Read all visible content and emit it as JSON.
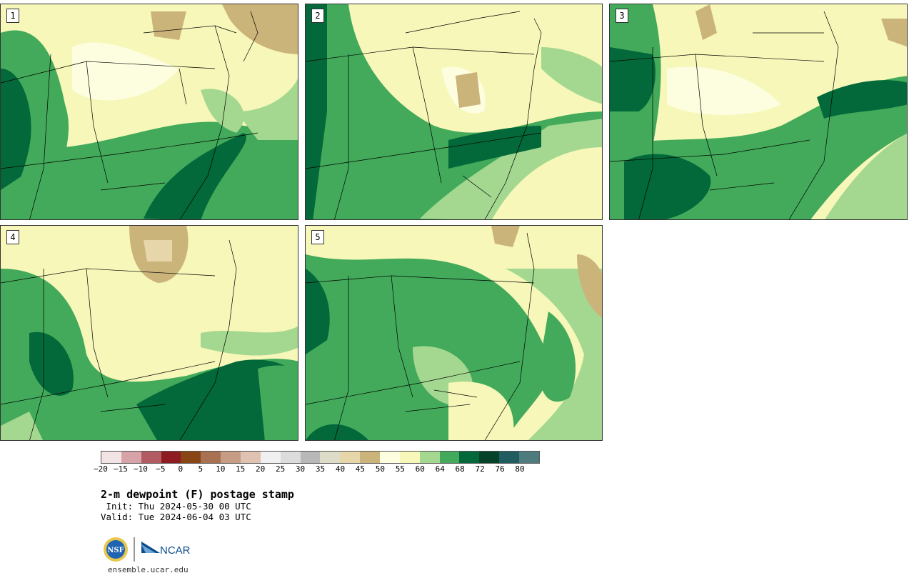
{
  "panels": [
    {
      "label": "1"
    },
    {
      "label": "2"
    },
    {
      "label": "3"
    },
    {
      "label": "4"
    },
    {
      "label": "5"
    }
  ],
  "colorbar": {
    "colors": [
      "#f2e4e4",
      "#d6a3a8",
      "#b25b62",
      "#8e1a22",
      "#8a4515",
      "#a87252",
      "#c69c84",
      "#e0c2b2",
      "#f0f0f0",
      "#dcdcdc",
      "#b8b8b8",
      "#dcdcc8",
      "#e6d6aa",
      "#cbb47a",
      "#fdfde0",
      "#f6f7b8",
      "#a4d890",
      "#42aa5a",
      "#03693a",
      "#05422a",
      "#1f5d5e",
      "#4e7c7e"
    ],
    "ticks": [
      "−20",
      "−15",
      "−10",
      "−5",
      "0",
      "5",
      "10",
      "15",
      "20",
      "25",
      "30",
      "35",
      "40",
      "45",
      "50",
      "55",
      "60",
      "64",
      "68",
      "72",
      "76",
      "80"
    ]
  },
  "title": "2-m dewpoint (F) postage stamp",
  "init": " Init: Thu 2024-05-30 00 UTC",
  "valid": "Valid: Tue 2024-06-04 03 UTC",
  "logos": {
    "nsf": "NSF",
    "ncar": "NCAR"
  },
  "site": "ensemble.ucar.edu"
}
